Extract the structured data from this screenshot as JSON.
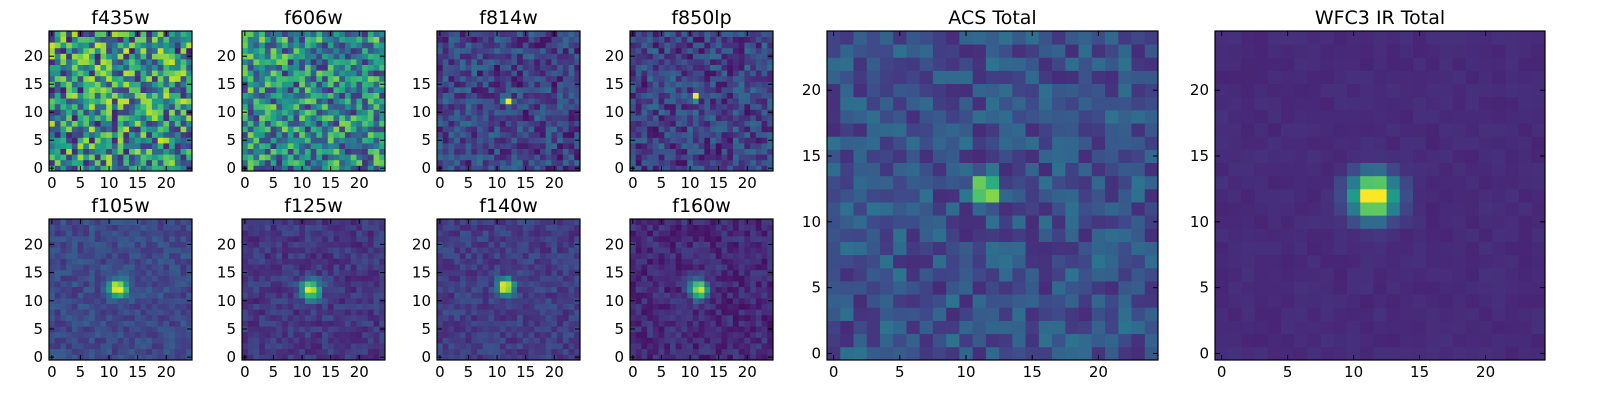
{
  "chart_data": [
    {
      "type": "heatmap",
      "title": "f435w",
      "xlim": [
        -0.5,
        24.5
      ],
      "ylim": [
        -0.5,
        24.5
      ],
      "xticks": [
        0,
        5,
        10,
        15,
        20
      ],
      "yticks": [
        0,
        5,
        10,
        15,
        20
      ],
      "grid": false,
      "colormap": "viridis",
      "source_pattern": "noise",
      "peak": [
        12,
        12
      ],
      "source_strength": 0.0,
      "source_width": 1.0,
      "background_level": 0.5,
      "noise_level": 0.42
    },
    {
      "type": "heatmap",
      "title": "f606w",
      "xlim": [
        -0.5,
        24.5
      ],
      "ylim": [
        -0.5,
        24.5
      ],
      "xticks": [
        0,
        5,
        10,
        15,
        20
      ],
      "yticks": [
        0,
        5,
        10,
        15,
        20
      ],
      "grid": false,
      "colormap": "viridis",
      "source_pattern": "noise",
      "peak": [
        12,
        12
      ],
      "source_strength": 0.0,
      "source_width": 1.0,
      "background_level": 0.48,
      "noise_level": 0.35
    },
    {
      "type": "heatmap",
      "title": "f814w",
      "xlim": [
        -0.5,
        24.5
      ],
      "ylim": [
        -0.5,
        24.5
      ],
      "xticks": [
        0,
        5,
        10,
        15,
        20
      ],
      "yticks": [
        0,
        5,
        10,
        15
      ],
      "grid": false,
      "colormap": "viridis",
      "source_pattern": "point",
      "peak": [
        12,
        12
      ],
      "source_strength": 1.0,
      "source_width": 0.55,
      "background_level": 0.2,
      "noise_level": 0.16
    },
    {
      "type": "heatmap",
      "title": "f850lp",
      "xlim": [
        -0.5,
        24.5
      ],
      "ylim": [
        -0.5,
        24.5
      ],
      "xticks": [
        0,
        5,
        10,
        15,
        20
      ],
      "yticks": [
        0,
        5,
        10,
        15,
        20
      ],
      "grid": false,
      "colormap": "viridis",
      "source_pattern": "point",
      "peak": [
        11,
        13
      ],
      "source_strength": 1.0,
      "source_width": 0.55,
      "background_level": 0.2,
      "noise_level": 0.16
    },
    {
      "type": "heatmap",
      "title": "f105w",
      "xlim": [
        -0.5,
        24.5
      ],
      "ylim": [
        -0.5,
        24.5
      ],
      "xticks": [
        0,
        5,
        10,
        15,
        20
      ],
      "yticks": [
        0,
        5,
        10,
        15,
        20
      ],
      "grid": false,
      "colormap": "viridis",
      "source_pattern": "compact",
      "peak": [
        11.6,
        12.3
      ],
      "source_strength": 0.85,
      "source_width": 1.1,
      "background_level": 0.22,
      "noise_level": 0.08
    },
    {
      "type": "heatmap",
      "title": "f125w",
      "xlim": [
        -0.5,
        24.5
      ],
      "ylim": [
        -0.5,
        24.5
      ],
      "xticks": [
        0,
        5,
        10,
        15,
        20
      ],
      "yticks": [
        0,
        5,
        10,
        15,
        20
      ],
      "grid": false,
      "colormap": "viridis",
      "source_pattern": "compact",
      "peak": [
        11.5,
        12.0
      ],
      "source_strength": 0.85,
      "source_width": 1.2,
      "background_level": 0.16,
      "noise_level": 0.08
    },
    {
      "type": "heatmap",
      "title": "f140w",
      "xlim": [
        -0.5,
        24.5
      ],
      "ylim": [
        -0.5,
        24.5
      ],
      "xticks": [
        0,
        5,
        10,
        15,
        20
      ],
      "yticks": [
        0,
        5,
        10,
        15,
        20
      ],
      "grid": false,
      "colormap": "viridis",
      "source_pattern": "compact",
      "peak": [
        11.5,
        12.5
      ],
      "source_strength": 0.88,
      "source_width": 1.0,
      "background_level": 0.18,
      "noise_level": 0.08
    },
    {
      "type": "heatmap",
      "title": "f160w",
      "xlim": [
        -0.5,
        24.5
      ],
      "ylim": [
        -0.5,
        24.5
      ],
      "xticks": [
        0,
        5,
        10,
        15,
        20
      ],
      "yticks": [
        0,
        5,
        10,
        15,
        20
      ],
      "grid": false,
      "colormap": "viridis",
      "source_pattern": "compact",
      "peak": [
        11.6,
        12.0
      ],
      "source_strength": 0.85,
      "source_width": 1.15,
      "background_level": 0.12,
      "noise_level": 0.08
    },
    {
      "type": "heatmap",
      "title": "ACS Total",
      "xlim": [
        -0.5,
        24.5
      ],
      "ylim": [
        -0.5,
        24.5
      ],
      "xticks": [
        0,
        5,
        10,
        15,
        20
      ],
      "yticks": [
        0,
        5,
        10,
        15,
        20
      ],
      "grid": false,
      "colormap": "viridis",
      "source_pattern": "point",
      "peak": [
        11.5,
        12.5
      ],
      "source_strength": 1.0,
      "source_width": 0.6,
      "background_level": 0.25,
      "noise_level": 0.13
    },
    {
      "type": "heatmap",
      "title": "WFC3 IR Total",
      "xlim": [
        -0.5,
        24.5
      ],
      "ylim": [
        -0.5,
        24.5
      ],
      "xticks": [
        0,
        5,
        10,
        15,
        20
      ],
      "yticks": [
        0,
        5,
        10,
        15,
        20
      ],
      "grid": false,
      "colormap": "viridis",
      "source_pattern": "compact",
      "peak": [
        11.5,
        12.0
      ],
      "source_strength": 0.95,
      "source_width": 1.2,
      "background_level": 0.12,
      "noise_level": 0.02
    }
  ]
}
